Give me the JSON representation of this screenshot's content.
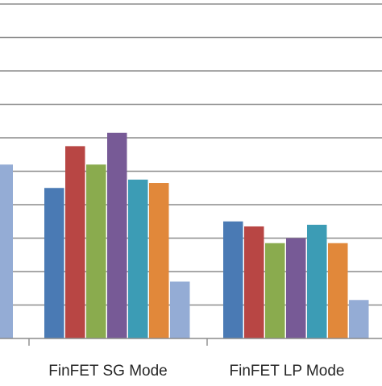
{
  "chart_data": {
    "type": "bar",
    "categories": [
      "",
      "FinFET SG Mode",
      "FinFET LP Mode"
    ],
    "series": [
      {
        "color": "#4a7ab4",
        "values": [
          null,
          4.5,
          3.5
        ]
      },
      {
        "color": "#b84644",
        "values": [
          null,
          5.75,
          3.35
        ]
      },
      {
        "color": "#8aab4e",
        "values": [
          null,
          5.2,
          2.85
        ]
      },
      {
        "color": "#775a96",
        "values": [
          null,
          6.15,
          3.0
        ]
      },
      {
        "color": "#3c9cb5",
        "values": [
          null,
          4.75,
          3.4
        ]
      },
      {
        "color": "#e1883a",
        "values": [
          null,
          4.65,
          2.85
        ]
      },
      {
        "color": "#94acd5",
        "values": [
          5.2,
          1.7,
          1.15
        ]
      }
    ],
    "ylim": [
      0,
      10
    ],
    "grid": true,
    "title": "",
    "xlabel": "",
    "ylabel": ""
  }
}
